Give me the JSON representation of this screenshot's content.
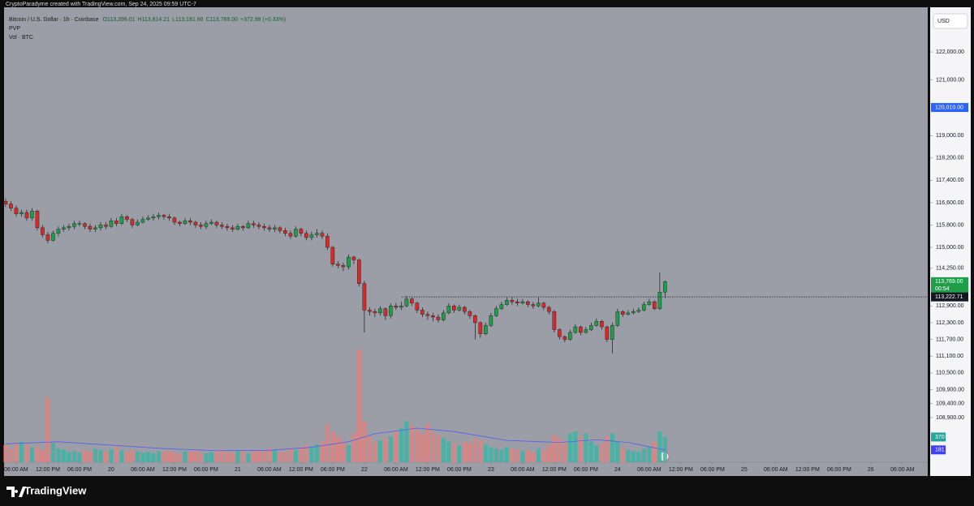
{
  "chart_data": {
    "type": "candlestick",
    "watermark": "CryptoParadyme created with TradingView.com, Sep 24, 2025 09:59 UTC-7",
    "legend": {
      "symbol": "Bitcoin / U.S. Dollar · 1h · Coinbase",
      "ohlc": [
        "O113,396.01",
        "H113,814.21",
        "L113,181.66",
        "C113,769.00"
      ],
      "change": "+372.98 (+0.33%)",
      "indicators": [
        "PVP",
        "Vol · BTC"
      ]
    },
    "currency": "USD",
    "brand": "TradingView",
    "up_color": "#1f9e4a",
    "down_color": "#d42a2a",
    "volume_up_color": "#3eb3a4",
    "volume_down_color": "#e0827f",
    "ma_color": "#5b5bf0",
    "xlim": [
      -0.3,
      174.8
    ],
    "ylim": [
      107300,
      123600
    ],
    "volume_ylim": [
      0,
      6680
    ],
    "xticks": [
      {
        "value": 2,
        "label": "06:00 AM"
      },
      {
        "value": 8,
        "label": "12:00 PM"
      },
      {
        "value": 14,
        "label": "06:00 PM"
      },
      {
        "value": 20,
        "label": "20"
      },
      {
        "value": 26,
        "label": "06:00 AM"
      },
      {
        "value": 32,
        "label": "12:00 PM"
      },
      {
        "value": 38,
        "label": "06:00 PM"
      },
      {
        "value": 44,
        "label": "21"
      },
      {
        "value": 50,
        "label": "06:00 AM"
      },
      {
        "value": 56,
        "label": "12:00 PM"
      },
      {
        "value": 62,
        "label": "06:00 PM"
      },
      {
        "value": 68,
        "label": "22"
      },
      {
        "value": 74,
        "label": "06:00 AM"
      },
      {
        "value": 80,
        "label": "12:00 PM"
      },
      {
        "value": 86,
        "label": "06:00 PM"
      },
      {
        "value": 92,
        "label": "23"
      },
      {
        "value": 98,
        "label": "06:00 AM"
      },
      {
        "value": 104,
        "label": "12:00 PM"
      },
      {
        "value": 110,
        "label": "06:00 PM"
      },
      {
        "value": 116,
        "label": "24"
      },
      {
        "value": 122,
        "label": "06:00 AM"
      },
      {
        "value": 128,
        "label": "12:00 PM"
      },
      {
        "value": 134,
        "label": "06:00 PM"
      },
      {
        "value": 140,
        "label": "25"
      },
      {
        "value": 146,
        "label": "06:00 AM"
      },
      {
        "value": 152,
        "label": "12:00 PM"
      },
      {
        "value": 158,
        "label": "06:00 PM"
      },
      {
        "value": 164,
        "label": "26"
      },
      {
        "value": 170,
        "label": "06:00 AM"
      }
    ],
    "yticks": [
      {
        "value": 122000,
        "label": "122,000.00"
      },
      {
        "value": 121000,
        "label": "121,000.00"
      },
      {
        "value": 119000,
        "label": "119,000.00"
      },
      {
        "value": 118200,
        "label": "118,200.00"
      },
      {
        "value": 117400,
        "label": "117,400.00"
      },
      {
        "value": 116600,
        "label": "116,600.00"
      },
      {
        "value": 115800,
        "label": "115,800.00"
      },
      {
        "value": 115000,
        "label": "115,000.00"
      },
      {
        "value": 114250,
        "label": "114,250.00"
      },
      {
        "value": 112900,
        "label": "112,900.00"
      },
      {
        "value": 112300,
        "label": "112,300.00"
      },
      {
        "value": 111700,
        "label": "111,700.00"
      },
      {
        "value": 111100,
        "label": "111,100.00"
      },
      {
        "value": 110500,
        "label": "110,500.00"
      },
      {
        "value": 109900,
        "label": "109,900.00"
      },
      {
        "value": 109400,
        "label": "109,400.00"
      },
      {
        "value": 108900,
        "label": "108,900.00"
      }
    ],
    "price_markers": [
      {
        "value": 120010,
        "label": "120,010.00",
        "color": "#2962ff"
      },
      {
        "value": 113769,
        "label": "113,769.00",
        "sub": "00:54",
        "color": "#1f9e4a"
      },
      {
        "value": 113222.71,
        "label": "113,222.71",
        "color": "#131722"
      }
    ],
    "volume_markers": [
      {
        "value": 370,
        "label": "370",
        "color": "#26a69a"
      },
      {
        "value": 181,
        "label": "181",
        "color": "#3f3ff5"
      }
    ],
    "open": [
      116650,
      116550,
      116400,
      116200,
      116250,
      116050,
      116300,
      115700,
      115450,
      115250,
      115500,
      115650,
      115700,
      115750,
      115850,
      115850,
      115750,
      115650,
      115700,
      115800,
      115750,
      115950,
      115850,
      116100,
      116000,
      115800,
      115900,
      116000,
      116050,
      116100,
      116150,
      116100,
      116050,
      115900,
      115850,
      115950,
      115900,
      115800,
      115750,
      115850,
      115900,
      115800,
      115750,
      115700,
      115650,
      115750,
      115700,
      115850,
      115800,
      115750,
      115700,
      115650,
      115700,
      115600,
      115500,
      115400,
      115650,
      115500,
      115350,
      115450,
      115500,
      115400,
      115000,
      114400,
      114350,
      114300,
      114650,
      114550,
      113700,
      112750,
      112700,
      112650,
      112800,
      112550,
      112900,
      112850,
      112900,
      113150,
      113000,
      112750,
      112600,
      112550,
      112500,
      112400,
      112650,
      112900,
      112750,
      112850,
      112700,
      112550,
      112300,
      111900,
      112200,
      112550,
      112800,
      112950,
      113100,
      113050,
      113000,
      113050,
      112950,
      112900,
      113000,
      112850,
      112700,
      112050,
      111800,
      111700,
      111950,
      112150,
      111950,
      112050,
      112200,
      112350,
      112150,
      111700,
      112200,
      112700,
      112600,
      112650,
      112700,
      112750,
      112950,
      113050,
      112800,
      113396.01
    ],
    "high": [
      116750,
      116650,
      116500,
      116350,
      116350,
      116400,
      116350,
      115800,
      115550,
      115600,
      115750,
      115800,
      115850,
      115950,
      115950,
      115900,
      115850,
      115800,
      115900,
      115900,
      116050,
      116050,
      116200,
      116150,
      116050,
      116000,
      116100,
      116150,
      116200,
      116250,
      116200,
      116200,
      116100,
      115950,
      116050,
      116050,
      115950,
      115900,
      115950,
      116000,
      115950,
      115900,
      115850,
      115800,
      115850,
      115800,
      115950,
      115950,
      115900,
      115850,
      115800,
      115800,
      115750,
      115700,
      115600,
      115750,
      115700,
      115600,
      115550,
      115650,
      115600,
      115500,
      115050,
      114500,
      114450,
      114750,
      114700,
      114600,
      113800,
      112850,
      112800,
      112900,
      112850,
      113000,
      113000,
      113050,
      113250,
      113200,
      113050,
      112850,
      112700,
      112650,
      112600,
      112750,
      113000,
      112950,
      112950,
      112900,
      112750,
      112600,
      112350,
      112300,
      112650,
      112900,
      113050,
      113200,
      113200,
      113150,
      113150,
      113100,
      113050,
      113200,
      113050,
      112900,
      112750,
      112100,
      111850,
      112050,
      112250,
      112200,
      112150,
      112300,
      112450,
      112400,
      112200,
      112300,
      112800,
      112750,
      112750,
      112800,
      112850,
      113050,
      113150,
      113100,
      114100,
      113814.21
    ],
    "low": [
      116450,
      116300,
      116100,
      116100,
      115950,
      115950,
      115600,
      115350,
      115150,
      115200,
      115400,
      115550,
      115600,
      115650,
      115750,
      115650,
      115550,
      115550,
      115600,
      115650,
      115700,
      115750,
      115800,
      115900,
      115700,
      115750,
      115850,
      115950,
      115950,
      116000,
      116000,
      115950,
      115800,
      115750,
      115800,
      115800,
      115700,
      115650,
      115650,
      115800,
      115700,
      115650,
      115600,
      115550,
      115600,
      115600,
      115650,
      115700,
      115650,
      115600,
      115550,
      115550,
      115500,
      115400,
      115300,
      115350,
      115400,
      115250,
      115250,
      115350,
      115300,
      114900,
      114300,
      114250,
      114150,
      114200,
      114400,
      113600,
      111950,
      112550,
      112500,
      112550,
      112400,
      112450,
      112750,
      112750,
      112850,
      112900,
      112650,
      112500,
      112400,
      112350,
      112300,
      112350,
      112600,
      112650,
      112700,
      112600,
      112450,
      111700,
      111750,
      111850,
      112150,
      112500,
      112750,
      112900,
      112950,
      112900,
      112950,
      112850,
      112800,
      112850,
      112750,
      112600,
      111950,
      111700,
      111600,
      111650,
      111900,
      111850,
      111900,
      112000,
      112150,
      112050,
      111600,
      111200,
      112150,
      112500,
      112550,
      112600,
      112650,
      112700,
      112900,
      112750,
      112750,
      113181.66
    ],
    "close": [
      116550,
      116400,
      116200,
      116250,
      116050,
      116300,
      115700,
      115450,
      115250,
      115500,
      115650,
      115700,
      115750,
      115850,
      115850,
      115750,
      115650,
      115700,
      115800,
      115750,
      115950,
      115850,
      116100,
      116000,
      115800,
      115900,
      116000,
      116050,
      116100,
      116150,
      116100,
      116050,
      115900,
      115850,
      115950,
      115900,
      115800,
      115750,
      115850,
      115900,
      115800,
      115750,
      115700,
      115650,
      115750,
      115700,
      115850,
      115800,
      115750,
      115700,
      115650,
      115700,
      115600,
      115500,
      115400,
      115650,
      115500,
      115350,
      115450,
      115500,
      115400,
      115000,
      114400,
      114350,
      114300,
      114650,
      114550,
      113700,
      112750,
      112700,
      112650,
      112800,
      112550,
      112900,
      112850,
      112900,
      113150,
      113000,
      112750,
      112600,
      112550,
      112500,
      112400,
      112650,
      112900,
      112750,
      112850,
      112700,
      112550,
      112300,
      111900,
      112200,
      112550,
      112800,
      112950,
      113100,
      113050,
      113000,
      113050,
      112950,
      112900,
      113000,
      112850,
      112700,
      112050,
      111800,
      111700,
      111950,
      112150,
      111950,
      112050,
      112200,
      112350,
      112150,
      111700,
      112200,
      112700,
      112600,
      112650,
      112700,
      112750,
      112950,
      113050,
      112800,
      113396.01,
      113769
    ],
    "volume": [
      250,
      200,
      280,
      300,
      260,
      220,
      230,
      180,
      950,
      280,
      200,
      180,
      150,
      160,
      140,
      170,
      150,
      200,
      180,
      160,
      190,
      220,
      170,
      150,
      180,
      160,
      140,
      150,
      130,
      160,
      150,
      170,
      140,
      120,
      160,
      150,
      170,
      140,
      130,
      150,
      160,
      180,
      150,
      140,
      170,
      160,
      130,
      150,
      170,
      160,
      200,
      180,
      150,
      160,
      200,
      180,
      220,
      250,
      230,
      260,
      300,
      560,
      450,
      380,
      300,
      250,
      420,
      1650,
      600,
      380,
      300,
      320,
      350,
      380,
      450,
      500,
      600,
      550,
      480,
      420,
      560,
      450,
      400,
      350,
      300,
      280,
      250,
      300,
      280,
      350,
      320,
      260,
      220,
      200,
      180,
      220,
      200,
      180,
      160,
      170,
      150,
      200,
      180,
      250,
      400,
      350,
      300,
      420,
      450,
      380,
      420,
      300,
      250,
      280,
      380,
      420,
      300,
      220,
      180,
      160,
      150,
      200,
      230,
      300,
      450,
      370
    ],
    "volume_ma": {
      "x": [
        0,
        10,
        20,
        30,
        40,
        50,
        58,
        65,
        70,
        78,
        85,
        95,
        105,
        112,
        118,
        125
      ],
      "values": [
        270,
        300,
        250,
        200,
        170,
        175,
        220,
        300,
        420,
        500,
        450,
        320,
        290,
        330,
        290,
        181
      ]
    }
  }
}
